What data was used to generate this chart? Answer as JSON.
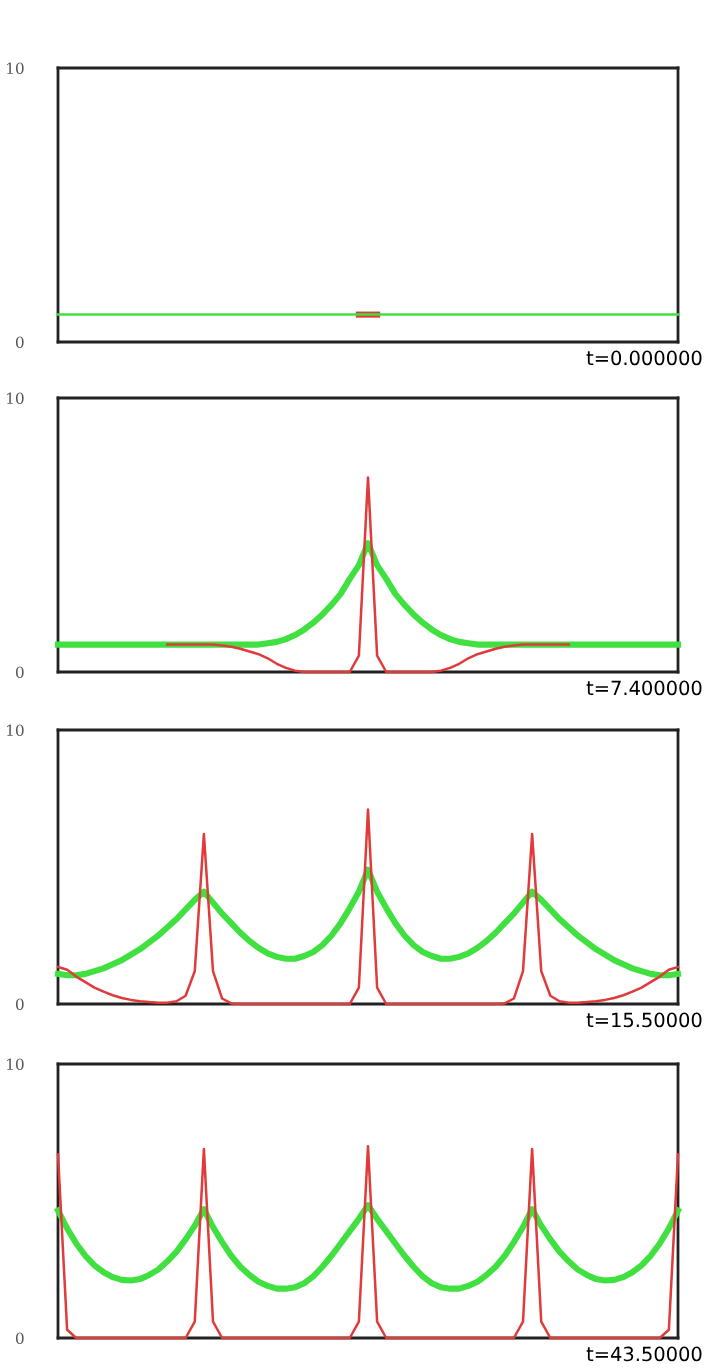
{
  "chart_data": [
    {
      "type": "line",
      "categories": [
        null,
        null,
        null,
        null,
        null,
        null,
        null,
        null,
        null,
        null,
        null,
        null,
        null,
        null,
        null,
        null,
        null,
        null,
        null,
        null,
        null,
        null,
        null,
        null,
        null,
        null,
        null,
        null,
        null,
        null,
        null,
        null,
        null,
        null,
        null,
        null,
        null,
        null,
        null,
        null,
        null,
        null,
        null,
        null,
        null,
        null,
        null,
        null,
        null,
        null,
        null,
        null,
        null,
        null,
        null,
        null,
        null,
        null,
        null,
        null,
        null,
        null,
        null,
        null,
        null,
        null,
        null,
        null,
        null
      ],
      "ylim": [
        0,
        10
      ],
      "yticks": [
        0,
        10
      ],
      "tick_labels": "y",
      "annotations": [
        "t=0.000000"
      ],
      "series": [
        {
          "color": "#e03a3a",
          "values": [
            null,
            null,
            null,
            null,
            null,
            null,
            null,
            null,
            null,
            null,
            null,
            null,
            null,
            null,
            null,
            null,
            null,
            null,
            null,
            null,
            null,
            null,
            null,
            null,
            null,
            null,
            null,
            null,
            null,
            null,
            null,
            null,
            null,
            1.0,
            1.0,
            1.0,
            null,
            null,
            null,
            null,
            null,
            null,
            null,
            null,
            null,
            null,
            null,
            null,
            null,
            null,
            null,
            null,
            null,
            null,
            null,
            null,
            null,
            null,
            null,
            null,
            null,
            null,
            null,
            null,
            null,
            null,
            null,
            null,
            null
          ]
        },
        {
          "color": "#40e040",
          "values": [
            1.0,
            1.0,
            1.0,
            1.0,
            1.0,
            1.0,
            1.0,
            1.0,
            1.0,
            1.0,
            1.0,
            1.0,
            1.0,
            1.0,
            1.0,
            1.0,
            1.0,
            1.0,
            1.0,
            1.0,
            1.0,
            1.0,
            1.0,
            1.0,
            1.0,
            1.0,
            1.0,
            1.0,
            1.0,
            1.0,
            1.0,
            1.0,
            1.0,
            1.0,
            1.0,
            1.0,
            1.0,
            1.0,
            1.0,
            1.0,
            1.0,
            1.0,
            1.0,
            1.0,
            1.0,
            1.0,
            1.0,
            1.0,
            1.0,
            1.0,
            1.0,
            1.0,
            1.0,
            1.0,
            1.0,
            1.0,
            1.0,
            1.0,
            1.0,
            1.0,
            1.0,
            1.0,
            1.0,
            1.0,
            1.0,
            1.0,
            1.0,
            1.0,
            1.0
          ]
        }
      ]
    },
    {
      "type": "line",
      "categories": [
        null,
        null,
        null,
        null,
        null,
        null,
        null,
        null,
        null,
        null,
        null,
        null,
        null,
        null,
        null,
        null,
        null,
        null,
        null,
        null,
        null,
        null,
        null,
        null,
        null,
        null,
        null,
        null,
        null,
        null,
        null,
        null,
        null,
        null,
        null,
        null,
        null,
        null,
        null,
        null,
        null,
        null,
        null,
        null,
        null,
        null,
        null,
        null,
        null,
        null,
        null,
        null,
        null,
        null,
        null,
        null,
        null,
        null,
        null,
        null,
        null,
        null,
        null,
        null,
        null,
        null,
        null,
        null,
        null
      ],
      "ylim": [
        0,
        10
      ],
      "yticks": [
        0,
        10
      ],
      "tick_labels": "y",
      "annotations": [
        "t=7.400000"
      ],
      "series": [
        {
          "color": "#40e040",
          "values": [
            1.0,
            1.0,
            1.0,
            1.0,
            1.0,
            1.0,
            1.0,
            1.0,
            1.0,
            1.0,
            1.0,
            1.0,
            1.0,
            1.0,
            1.0,
            1.0,
            1.0,
            1.0,
            1.0,
            1.0,
            1.0,
            1.0,
            1.0,
            1.05,
            1.1,
            1.2,
            1.35,
            1.55,
            1.8,
            2.1,
            2.45,
            2.85,
            3.4,
            3.9,
            4.7,
            3.9,
            3.4,
            2.85,
            2.45,
            2.1,
            1.8,
            1.55,
            1.35,
            1.2,
            1.1,
            1.05,
            1.0,
            1.0,
            1.0,
            1.0,
            1.0,
            1.0,
            1.0,
            1.0,
            1.0,
            1.0,
            1.0,
            1.0,
            1.0,
            1.0,
            1.0,
            1.0,
            1.0,
            1.0,
            1.0,
            1.0,
            1.0,
            1.0,
            1.0
          ]
        },
        {
          "color": "#e03a3a",
          "values": [
            null,
            null,
            null,
            null,
            null,
            null,
            null,
            null,
            null,
            null,
            null,
            null,
            1.0,
            1.0,
            1.0,
            1.0,
            1.0,
            1.0,
            0.97,
            0.92,
            0.85,
            0.75,
            0.65,
            0.5,
            0.3,
            0.15,
            0.05,
            0.0,
            0.0,
            0.0,
            0.0,
            0.0,
            0.0,
            0.6,
            7.1,
            0.6,
            0.0,
            0.0,
            0.0,
            0.0,
            0.0,
            0.0,
            0.05,
            0.15,
            0.3,
            0.5,
            0.65,
            0.75,
            0.85,
            0.92,
            0.97,
            1.0,
            1.0,
            1.0,
            1.0,
            1.0,
            1.0,
            null,
            null,
            null,
            null,
            null,
            null,
            null,
            null,
            null,
            null,
            null,
            null
          ]
        }
      ]
    },
    {
      "type": "line",
      "categories": [
        null,
        null,
        null,
        null,
        null,
        null,
        null,
        null,
        null,
        null,
        null,
        null,
        null,
        null,
        null,
        null,
        null,
        null,
        null,
        null,
        null,
        null,
        null,
        null,
        null,
        null,
        null,
        null,
        null,
        null,
        null,
        null,
        null,
        null,
        null,
        null,
        null,
        null,
        null,
        null,
        null,
        null,
        null,
        null,
        null,
        null,
        null,
        null,
        null,
        null,
        null,
        null,
        null,
        null,
        null,
        null,
        null,
        null,
        null,
        null,
        null,
        null,
        null,
        null,
        null,
        null,
        null,
        null,
        null
      ],
      "ylim": [
        0,
        10
      ],
      "yticks": [
        0,
        10
      ],
      "tick_labels": "y",
      "annotations": [
        "t=15.50000"
      ],
      "series": [
        {
          "color": "#40e040",
          "values": [
            1.1,
            1.05,
            1.05,
            1.1,
            1.2,
            1.3,
            1.45,
            1.6,
            1.8,
            2.0,
            2.25,
            2.5,
            2.8,
            3.1,
            3.45,
            3.8,
            4.1,
            3.7,
            3.3,
            2.95,
            2.6,
            2.3,
            2.05,
            1.85,
            1.72,
            1.65,
            1.65,
            1.75,
            1.9,
            2.15,
            2.5,
            2.95,
            3.5,
            4.1,
            4.9,
            4.1,
            3.5,
            2.95,
            2.5,
            2.15,
            1.9,
            1.75,
            1.65,
            1.65,
            1.72,
            1.85,
            2.05,
            2.3,
            2.6,
            2.95,
            3.3,
            3.7,
            4.1,
            3.8,
            3.45,
            3.1,
            2.8,
            2.5,
            2.25,
            2.0,
            1.8,
            1.6,
            1.45,
            1.3,
            1.2,
            1.1,
            1.05,
            1.05,
            1.1
          ]
        },
        {
          "color": "#e03a3a",
          "values": [
            1.35,
            1.25,
            1.0,
            0.8,
            0.6,
            0.45,
            0.32,
            0.22,
            0.15,
            0.1,
            0.07,
            0.05,
            0.05,
            0.1,
            0.3,
            1.2,
            6.2,
            1.2,
            0.2,
            0.02,
            0.0,
            0.0,
            0.0,
            0.0,
            0.0,
            0.0,
            0.0,
            0.0,
            0.0,
            0.0,
            0.0,
            0.0,
            0.0,
            0.6,
            7.1,
            0.6,
            0.0,
            0.0,
            0.0,
            0.0,
            0.0,
            0.0,
            0.0,
            0.0,
            0.0,
            0.0,
            0.0,
            0.0,
            0.0,
            0.02,
            0.2,
            1.2,
            6.2,
            1.2,
            0.3,
            0.1,
            0.05,
            0.05,
            0.07,
            0.1,
            0.15,
            0.22,
            0.32,
            0.45,
            0.6,
            0.8,
            1.0,
            1.25,
            1.35
          ]
        }
      ]
    },
    {
      "type": "line",
      "categories": [
        null,
        null,
        null,
        null,
        null,
        null,
        null,
        null,
        null,
        null,
        null,
        null,
        null,
        null,
        null,
        null,
        null,
        null,
        null,
        null,
        null,
        null,
        null,
        null,
        null,
        null,
        null,
        null,
        null,
        null,
        null,
        null,
        null,
        null,
        null,
        null,
        null,
        null,
        null,
        null,
        null,
        null,
        null,
        null,
        null,
        null,
        null,
        null,
        null,
        null,
        null,
        null,
        null,
        null,
        null,
        null,
        null,
        null,
        null,
        null,
        null,
        null,
        null,
        null,
        null,
        null,
        null,
        null,
        null
      ],
      "ylim": [
        0,
        10
      ],
      "yticks": [
        0,
        10
      ],
      "tick_labels": "y",
      "annotations": [
        "t=43.50000"
      ],
      "series": [
        {
          "color": "#40e040",
          "values": [
            4.65,
            4.0,
            3.45,
            3.0,
            2.65,
            2.4,
            2.22,
            2.12,
            2.1,
            2.15,
            2.3,
            2.5,
            2.8,
            3.15,
            3.6,
            4.1,
            4.7,
            4.05,
            3.5,
            3.0,
            2.6,
            2.3,
            2.05,
            1.9,
            1.8,
            1.8,
            1.85,
            2.0,
            2.25,
            2.6,
            3.0,
            3.45,
            3.9,
            4.35,
            4.85,
            4.35,
            3.9,
            3.45,
            3.0,
            2.6,
            2.25,
            2.0,
            1.85,
            1.8,
            1.8,
            1.9,
            2.05,
            2.3,
            2.6,
            3.0,
            3.5,
            4.05,
            4.7,
            4.1,
            3.6,
            3.15,
            2.8,
            2.5,
            2.3,
            2.15,
            2.1,
            2.12,
            2.22,
            2.4,
            2.65,
            3.0,
            3.45,
            4.0,
            4.65
          ]
        },
        {
          "color": "#e03a3a",
          "values": [
            6.7,
            0.3,
            0.0,
            0.0,
            0.0,
            0.0,
            0.0,
            0.0,
            0.0,
            0.0,
            0.0,
            0.0,
            0.0,
            0.0,
            0.0,
            0.6,
            6.9,
            0.6,
            0.0,
            0.0,
            0.0,
            0.0,
            0.0,
            0.0,
            0.0,
            0.0,
            0.0,
            0.0,
            0.0,
            0.0,
            0.0,
            0.0,
            0.0,
            0.6,
            7.0,
            0.6,
            0.0,
            0.0,
            0.0,
            0.0,
            0.0,
            0.0,
            0.0,
            0.0,
            0.0,
            0.0,
            0.0,
            0.0,
            0.0,
            0.0,
            0.0,
            0.6,
            6.9,
            0.6,
            0.0,
            0.0,
            0.0,
            0.0,
            0.0,
            0.0,
            0.0,
            0.0,
            0.0,
            0.0,
            0.0,
            0.0,
            0.0,
            0.3,
            6.7
          ]
        }
      ]
    }
  ]
}
